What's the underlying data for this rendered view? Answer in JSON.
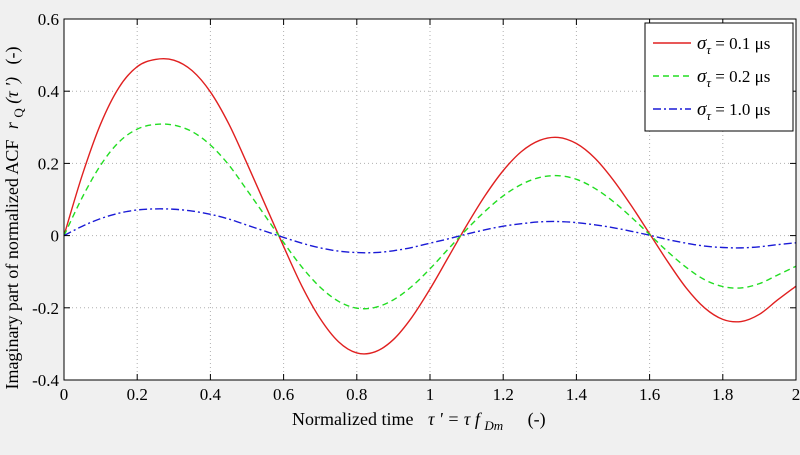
{
  "chart_data": {
    "type": "line",
    "xlabel": {
      "prefix": "Normalized time",
      "expr_main": "τ ' = τ f",
      "expr_sub": "Dm",
      "unit": "(-)"
    },
    "ylabel": {
      "prefix": "Imaginary part of normalized ACF",
      "expr_main": "r",
      "expr_sub": "Q",
      "expr_arg": "(τ ')",
      "unit": "(-)"
    },
    "xlim": [
      0,
      2
    ],
    "ylim": [
      -0.4,
      0.6
    ],
    "x_ticks": [
      0,
      0.2,
      0.4,
      0.6,
      0.8,
      1,
      1.2,
      1.4,
      1.6,
      1.8,
      2
    ],
    "x_tick_labels": [
      "0",
      "0.2",
      "0.4",
      "0.6",
      "0.8",
      "1",
      "1.2",
      "1.4",
      "1.6",
      "1.8",
      "2"
    ],
    "y_ticks": [
      -0.4,
      -0.2,
      0,
      0.2,
      0.4,
      0.6
    ],
    "y_tick_labels": [
      "-0.4",
      "-0.2",
      "0",
      "0.2",
      "0.4",
      "0.6"
    ],
    "grid": true,
    "legend_position": "top-right",
    "x": [
      0,
      0.05,
      0.1,
      0.15,
      0.2,
      0.25,
      0.3,
      0.35,
      0.4,
      0.45,
      0.5,
      0.55,
      0.6,
      0.65,
      0.7,
      0.75,
      0.8,
      0.85,
      0.9,
      0.95,
      1.0,
      1.05,
      1.1,
      1.15,
      1.2,
      1.25,
      1.3,
      1.35,
      1.4,
      1.45,
      1.5,
      1.55,
      1.6,
      1.65,
      1.7,
      1.75,
      1.8,
      1.85,
      1.9,
      1.95,
      2.0
    ],
    "series": [
      {
        "name": "σ_τ = 0.1 μs",
        "name_symbol": "σ",
        "name_sub": "τ",
        "name_rest": " = 0.1 μs",
        "color": "#e02020",
        "dash": "solid",
        "values": [
          0,
          0.168,
          0.309,
          0.41,
          0.468,
          0.488,
          0.486,
          0.457,
          0.398,
          0.31,
          0.2,
          0.085,
          -0.03,
          -0.14,
          -0.23,
          -0.294,
          -0.325,
          -0.322,
          -0.288,
          -0.227,
          -0.148,
          -0.06,
          0.028,
          0.11,
          0.18,
          0.233,
          0.264,
          0.272,
          0.255,
          0.215,
          0.155,
          0.083,
          0.005,
          -0.073,
          -0.145,
          -0.2,
          -0.232,
          -0.238,
          -0.218,
          -0.178,
          -0.14
        ]
      },
      {
        "name": "σ_τ = 0.2 μs",
        "name_symbol": "σ",
        "name_sub": "τ",
        "name_rest": " = 0.2 μs",
        "color": "#22dd22",
        "dash": "dashed",
        "values": [
          0,
          0.106,
          0.195,
          0.259,
          0.295,
          0.308,
          0.306,
          0.288,
          0.251,
          0.196,
          0.126,
          0.054,
          -0.019,
          -0.087,
          -0.143,
          -0.182,
          -0.201,
          -0.199,
          -0.178,
          -0.141,
          -0.092,
          -0.037,
          0.017,
          0.067,
          0.11,
          0.142,
          0.161,
          0.166,
          0.156,
          0.131,
          0.095,
          0.051,
          0.003,
          -0.045,
          -0.088,
          -0.122,
          -0.141,
          -0.145,
          -0.133,
          -0.109,
          -0.085
        ]
      },
      {
        "name": "σ_τ = 1.0 μs",
        "name_symbol": "σ",
        "name_sub": "τ",
        "name_rest": " = 1.0 μs",
        "color": "#1a1ad6",
        "dash": "dashdot",
        "values": [
          0,
          0.026,
          0.047,
          0.062,
          0.071,
          0.074,
          0.073,
          0.068,
          0.059,
          0.046,
          0.029,
          0.012,
          -0.005,
          -0.021,
          -0.034,
          -0.043,
          -0.047,
          -0.047,
          -0.042,
          -0.033,
          -0.021,
          -0.009,
          0.004,
          0.016,
          0.026,
          0.033,
          0.038,
          0.039,
          0.036,
          0.03,
          0.022,
          0.012,
          0.001,
          -0.011,
          -0.021,
          -0.029,
          -0.033,
          -0.034,
          -0.031,
          -0.025,
          -0.02
        ]
      }
    ]
  }
}
